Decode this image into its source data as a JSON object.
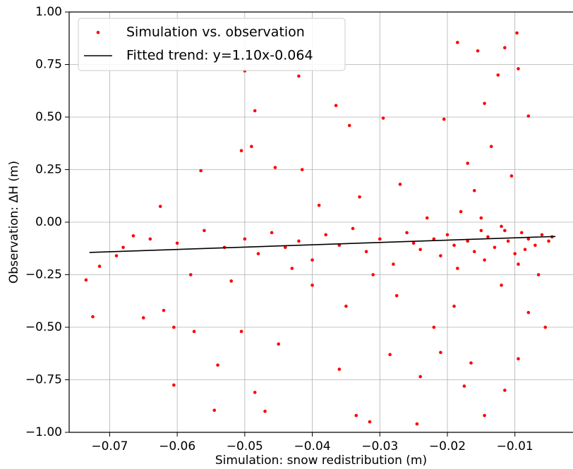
{
  "chart_data": {
    "type": "scatter",
    "xlabel": "Simulation: snow redistribution (m)",
    "ylabel": "Observation: ΔH (m)",
    "xlim": [
      -0.076,
      -0.0014
    ],
    "ylim": [
      -1,
      1
    ],
    "xticks": [
      {
        "value": -0.07,
        "label": "−0.07"
      },
      {
        "value": -0.06,
        "label": "−0.06"
      },
      {
        "value": -0.05,
        "label": "−0.05"
      },
      {
        "value": -0.04,
        "label": "−0.04"
      },
      {
        "value": -0.03,
        "label": "−0.03"
      },
      {
        "value": -0.02,
        "label": "−0.02"
      },
      {
        "value": -0.01,
        "label": "−0.01"
      }
    ],
    "yticks": [
      {
        "value": 1,
        "label": "1.00"
      },
      {
        "value": 0.75,
        "label": "0.75"
      },
      {
        "value": 0.5,
        "label": "0.50"
      },
      {
        "value": 0.25,
        "label": "0.25"
      },
      {
        "value": 0,
        "label": "0.00"
      },
      {
        "value": -0.25,
        "label": "−0.25"
      },
      {
        "value": -0.5,
        "label": "−0.50"
      },
      {
        "value": -0.75,
        "label": "−0.75"
      },
      {
        "value": -1,
        "label": "−1.00"
      }
    ],
    "grid": true,
    "legend": "upper left",
    "series": [
      {
        "name": "Simulation vs. observation",
        "mode": "markers",
        "color": "#ff0000",
        "x": [
          -0.0097,
          -0.0185,
          -0.0155,
          -0.0115,
          -0.05,
          -0.042,
          -0.0125,
          -0.0095,
          -0.0485,
          -0.0365,
          -0.0345,
          -0.0295,
          -0.0205,
          -0.0145,
          -0.008,
          -0.0565,
          -0.0505,
          -0.049,
          -0.0455,
          -0.0415,
          -0.0625,
          -0.0725,
          -0.0605,
          -0.0605,
          -0.0545,
          -0.0485,
          -0.047,
          -0.0335,
          -0.0315,
          -0.0245,
          -0.0145,
          -0.0175,
          -0.0095,
          -0.0055,
          -0.0735,
          -0.0715,
          -0.069,
          -0.0665,
          -0.065,
          -0.062,
          -0.0575,
          -0.054,
          -0.0505,
          -0.045,
          -0.036,
          -0.0285,
          -0.024,
          -0.021,
          -0.0165,
          -0.0115,
          -0.008,
          -0.022,
          -0.035,
          -0.04,
          -0.052,
          -0.058,
          -0.068,
          -0.064,
          -0.06,
          -0.056,
          -0.053,
          -0.05,
          -0.048,
          -0.046,
          -0.044,
          -0.042,
          -0.04,
          -0.038,
          -0.036,
          -0.034,
          -0.032,
          -0.03,
          -0.028,
          -0.026,
          -0.025,
          -0.024,
          -0.023,
          -0.022,
          -0.021,
          -0.02,
          -0.019,
          -0.018,
          -0.017,
          -0.016,
          -0.015,
          -0.014,
          -0.013,
          -0.012,
          -0.011,
          -0.01,
          -0.009,
          -0.008,
          -0.007,
          -0.006,
          -0.005,
          -0.0045,
          -0.0135,
          -0.0105,
          -0.016,
          -0.027,
          -0.033,
          -0.039,
          -0.0275,
          -0.019,
          -0.012,
          -0.0065,
          -0.015,
          -0.0115,
          -0.0085,
          -0.0185,
          -0.031,
          -0.043,
          -0.0145,
          -0.0095,
          -0.017
        ],
        "values": [
          0.9,
          0.855,
          0.815,
          0.83,
          0.72,
          0.695,
          0.7,
          0.73,
          0.53,
          0.555,
          0.46,
          0.495,
          0.49,
          0.565,
          0.505,
          0.245,
          0.34,
          0.36,
          0.26,
          0.25,
          0.075,
          -0.45,
          -0.5,
          -0.775,
          -0.895,
          -0.81,
          -0.9,
          -0.92,
          -0.95,
          -0.96,
          -0.92,
          -0.78,
          -0.65,
          -0.5,
          -0.275,
          -0.21,
          -0.16,
          -0.065,
          -0.455,
          -0.42,
          -0.52,
          -0.68,
          -0.52,
          -0.58,
          -0.7,
          -0.63,
          -0.735,
          -0.62,
          -0.67,
          -0.8,
          -0.43,
          -0.5,
          -0.4,
          -0.3,
          -0.28,
          -0.25,
          -0.12,
          -0.08,
          -0.1,
          -0.04,
          -0.12,
          -0.08,
          -0.15,
          -0.05,
          -0.12,
          -0.09,
          -0.18,
          -0.06,
          -0.11,
          -0.03,
          -0.14,
          -0.08,
          -0.2,
          -0.05,
          -0.1,
          -0.13,
          0.02,
          -0.08,
          -0.16,
          -0.06,
          -0.11,
          0.05,
          -0.09,
          -0.14,
          -0.04,
          -0.07,
          -0.12,
          -0.02,
          -0.09,
          -0.15,
          -0.05,
          -0.08,
          -0.11,
          -0.06,
          -0.09,
          -0.07,
          0.36,
          0.22,
          0.15,
          0.18,
          0.12,
          0.08,
          -0.35,
          -0.4,
          -0.3,
          -0.25,
          0.02,
          -0.04,
          -0.13,
          -0.22,
          -0.25,
          -0.22,
          -0.18,
          -0.2,
          0.28
        ]
      },
      {
        "name": "Fitted trend: y=1.10x-0.064",
        "mode": "line",
        "color": "#000000",
        "x": [
          -0.073,
          -0.004
        ],
        "values": [
          -0.144,
          -0.068
        ]
      }
    ]
  }
}
